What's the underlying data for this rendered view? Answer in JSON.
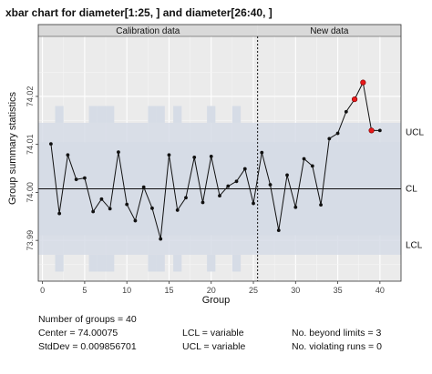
{
  "chart_data": {
    "type": "line",
    "title": "xbar chart for diameter[1:25, ] and diameter[26:40, ]",
    "xlabel": "Group",
    "ylabel": "Group summary statistics",
    "phase_labels": [
      "Calibration data",
      "New data"
    ],
    "phase_split": 25.5,
    "xlim": [
      -0.5,
      42.5
    ],
    "ylim": [
      73.9815,
      74.0325
    ],
    "x_ticks": [
      0,
      5,
      10,
      15,
      20,
      25,
      30,
      35,
      40
    ],
    "y_ticks": [
      73.99,
      74.0,
      74.01,
      74.02
    ],
    "y_tick_labels": [
      "73.99",
      "74.00",
      "74.01",
      "74.02"
    ],
    "center": 74.00075,
    "ucl_band": [
      74.0105,
      74.0145
    ],
    "lcl_band": [
      73.987,
      73.991
    ],
    "limit_labels": {
      "ucl": "UCL",
      "cl": "CL",
      "lcl": "LCL"
    },
    "variable_limit_groups": [
      2,
      6,
      7,
      8,
      13,
      14,
      16,
      20,
      23
    ],
    "grid": true,
    "colors": {
      "panel": "#ebebeb",
      "band": "#d6dce6",
      "line": "#111111",
      "violation": "#e8191a",
      "phase_strip": "#d9d9d9"
    },
    "series": [
      {
        "x": [
          1,
          2,
          3,
          4,
          5,
          6,
          7,
          8,
          9,
          10,
          11,
          12,
          13,
          14,
          15,
          16,
          17,
          18,
          19,
          20,
          21,
          22,
          23,
          24,
          25,
          26,
          27,
          28,
          29,
          30,
          31,
          32,
          33,
          34,
          35,
          36,
          37,
          38,
          39,
          40
        ],
        "values": [
          74.0101,
          73.9956,
          74.0078,
          74.0027,
          74.003,
          73.996,
          73.9986,
          73.9966,
          74.0084,
          73.9975,
          73.9941,
          74.0011,
          73.9967,
          73.9903,
          74.0078,
          73.9963,
          73.9989,
          74.0073,
          73.9979,
          74.0075,
          73.9993,
          74.0013,
          74.0023,
          74.0049,
          73.9977,
          74.0083,
          74.0016,
          73.9921,
          74.0036,
          73.9969,
          74.007,
          74.0055,
          73.9974,
          74.0112,
          74.0123,
          74.0168,
          74.0194,
          74.0229,
          74.0129,
          74.0129
        ],
        "violations": [
          37,
          38,
          39
        ]
      }
    ]
  },
  "stats": {
    "groups": "Number of groups = 40",
    "center": "Center = 74.00075",
    "stddev": "StdDev = 0.009856701",
    "lcl": "LCL = variable",
    "ucl": "UCL = variable",
    "beyond": "No. beyond limits = 3",
    "runs": "No. violating runs = 0"
  }
}
